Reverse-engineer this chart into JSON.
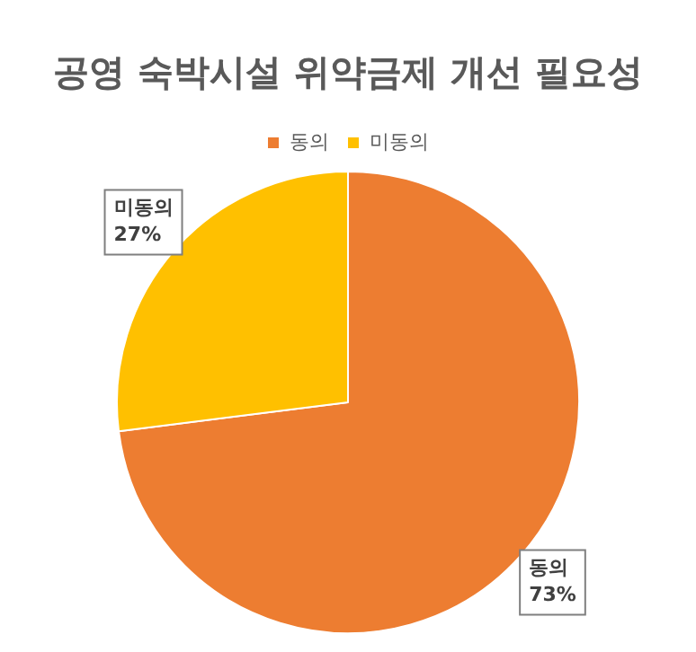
{
  "chart_data": {
    "type": "pie",
    "title": "공영 숙박시설 위약금제 개선 필요성",
    "categories": [
      "동의",
      "미동의"
    ],
    "values": [
      73,
      27
    ],
    "colors": [
      "#ed7d31",
      "#ffc000"
    ],
    "value_labels": [
      "73%",
      "27%"
    ],
    "legend": "top"
  }
}
